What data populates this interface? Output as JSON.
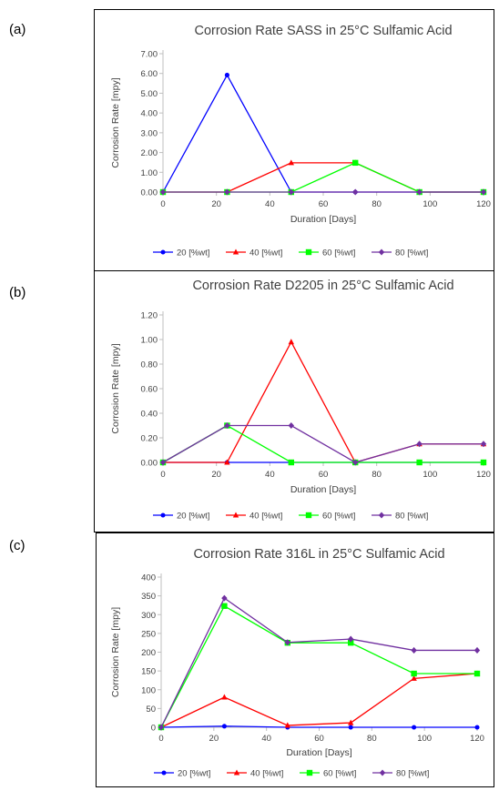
{
  "panels": [
    {
      "label": "(a)",
      "chart_data": {
        "type": "line",
        "title": "Corrosion Rate SASS in 25°C Sulfamic Acid",
        "xlabel": "Duration [Days]",
        "ylabel": "Corrosion Rate [mpy]",
        "x": [
          0,
          24,
          48,
          72,
          96,
          120
        ],
        "xticks": [
          0,
          20,
          40,
          60,
          80,
          100,
          120
        ],
        "xlim": [
          0,
          120
        ],
        "yticks": [
          "0.00",
          "1.00",
          "2.00",
          "3.00",
          "4.00",
          "5.00",
          "6.00",
          "7.00"
        ],
        "ylim": [
          0,
          7
        ],
        "legend_position": "bottom",
        "series": [
          {
            "name": "20 [%wt]",
            "color": "#0000ff",
            "marker": "circle",
            "values": [
              0,
              5.92,
              0,
              0,
              0,
              0
            ]
          },
          {
            "name": "40 [%wt]",
            "color": "#ff0000",
            "marker": "triangle",
            "values": [
              0,
              0,
              1.48,
              1.48,
              0,
              0
            ]
          },
          {
            "name": "60 [%wt]",
            "color": "#00ff00",
            "marker": "square",
            "values": [
              0,
              0,
              0,
              1.48,
              0,
              0
            ]
          },
          {
            "name": "80 [%wt]",
            "color": "#7030a0",
            "marker": "diamond",
            "values": [
              0,
              0,
              0,
              0,
              0,
              0
            ]
          }
        ]
      }
    },
    {
      "label": "(b)",
      "chart_data": {
        "type": "line",
        "title": "Corrosion Rate D2205 in 25°C Sulfamic Acid",
        "xlabel": "Duration [Days]",
        "ylabel": "Corrosion Rate [mpy]",
        "x": [
          0,
          24,
          48,
          72,
          96,
          120
        ],
        "xticks": [
          0,
          20,
          40,
          60,
          80,
          100,
          120
        ],
        "xlim": [
          0,
          120
        ],
        "yticks": [
          "0.00",
          "0.20",
          "0.40",
          "0.60",
          "0.80",
          "1.00",
          "1.20"
        ],
        "ylim": [
          0,
          1.2
        ],
        "legend_position": "bottom",
        "series": [
          {
            "name": "20 [%wt]",
            "color": "#0000ff",
            "marker": "circle",
            "values": [
              0,
              0,
              0,
              0,
              0,
              0
            ]
          },
          {
            "name": "40 [%wt]",
            "color": "#ff0000",
            "marker": "triangle",
            "values": [
              0,
              0,
              0.98,
              0,
              0.15,
              0.15
            ]
          },
          {
            "name": "60 [%wt]",
            "color": "#00ff00",
            "marker": "square",
            "values": [
              0,
              0.3,
              0,
              0,
              0,
              0
            ]
          },
          {
            "name": "80 [%wt]",
            "color": "#7030a0",
            "marker": "diamond",
            "values": [
              0,
              0.3,
              0.3,
              0,
              0.15,
              0.15
            ]
          }
        ]
      }
    },
    {
      "label": "(c)",
      "chart_data": {
        "type": "line",
        "title": "Corrosion Rate 316L in 25°C Sulfamic Acid",
        "xlabel": "Duration [Days]",
        "ylabel": "Corrosion Rate [mpy]",
        "x": [
          0,
          24,
          48,
          72,
          96,
          120
        ],
        "xticks": [
          0,
          20,
          40,
          60,
          80,
          100,
          120
        ],
        "xlim": [
          0,
          120
        ],
        "yticks": [
          "0",
          "50",
          "100",
          "150",
          "200",
          "250",
          "300",
          "350",
          "400"
        ],
        "ylim": [
          0,
          400
        ],
        "legend_position": "bottom",
        "series": [
          {
            "name": "20 [%wt]",
            "color": "#0000ff",
            "marker": "circle",
            "values": [
              0,
              3,
              0,
              0,
              0,
              0
            ]
          },
          {
            "name": "40 [%wt]",
            "color": "#ff0000",
            "marker": "triangle",
            "values": [
              0,
              80,
              5,
              12,
              130,
              143
            ]
          },
          {
            "name": "60 [%wt]",
            "color": "#00ff00",
            "marker": "square",
            "values": [
              0,
              323,
              225,
              225,
              143,
              143
            ]
          },
          {
            "name": "80 [%wt]",
            "color": "#7030a0",
            "marker": "diamond",
            "values": [
              0,
              344,
              226,
              235,
              205,
              205
            ]
          }
        ]
      }
    }
  ]
}
